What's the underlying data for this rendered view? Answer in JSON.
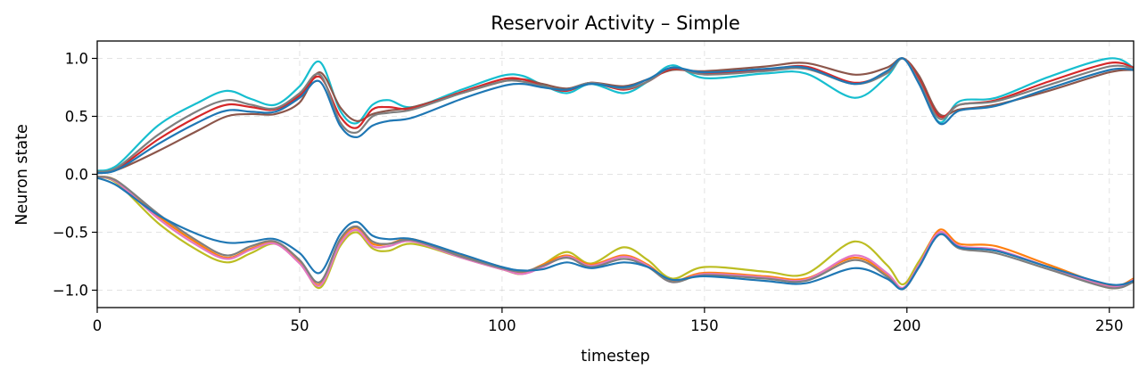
{
  "chart_data": {
    "type": "line",
    "title": "Reservoir Activity – Simple",
    "xlabel": "timestep",
    "ylabel": "Neuron state",
    "xlim": [
      0,
      256
    ],
    "ylim": [
      -1.15,
      1.15
    ],
    "xticks": [
      0,
      50,
      100,
      150,
      200,
      250
    ],
    "yticks": [
      1.0,
      0.5,
      0.0,
      -0.5,
      -1.0
    ],
    "xtick_labels": [
      "0",
      "50",
      "100",
      "150",
      "200",
      "250"
    ],
    "ytick_labels": [
      "1.0",
      "0.5",
      "0.0",
      "−0.5",
      "−1.0"
    ],
    "grid": true,
    "legend": "none",
    "series": [
      {
        "color": "#17becf",
        "x": [
          0,
          5,
          15,
          25,
          32,
          38,
          44,
          50,
          55,
          60,
          64,
          68,
          72,
          78,
          90,
          100,
          105,
          110,
          116,
          122,
          130,
          136,
          142,
          150,
          165,
          175,
          187,
          195,
          199,
          203,
          208,
          213,
          222,
          235,
          250,
          256
        ],
        "values": [
          0.03,
          0.08,
          0.42,
          0.62,
          0.72,
          0.65,
          0.6,
          0.76,
          0.97,
          0.55,
          0.44,
          0.6,
          0.64,
          0.58,
          0.73,
          0.85,
          0.85,
          0.77,
          0.7,
          0.78,
          0.7,
          0.8,
          0.94,
          0.83,
          0.87,
          0.87,
          0.66,
          0.84,
          1.0,
          0.8,
          0.45,
          0.63,
          0.66,
          0.84,
          1.0,
          0.92
        ]
      },
      {
        "color": "#8c564b",
        "x": [
          0,
          5,
          15,
          25,
          32,
          38,
          44,
          50,
          55,
          60,
          64,
          68,
          72,
          78,
          90,
          100,
          105,
          110,
          116,
          122,
          130,
          136,
          142,
          150,
          165,
          175,
          187,
          195,
          199,
          203,
          208,
          213,
          222,
          235,
          250,
          256
        ],
        "values": [
          0.02,
          0.04,
          0.2,
          0.38,
          0.5,
          0.52,
          0.52,
          0.62,
          0.88,
          0.58,
          0.46,
          0.52,
          0.55,
          0.58,
          0.7,
          0.8,
          0.82,
          0.78,
          0.74,
          0.79,
          0.76,
          0.82,
          0.9,
          0.89,
          0.93,
          0.96,
          0.86,
          0.92,
          1.0,
          0.85,
          0.52,
          0.56,
          0.6,
          0.72,
          0.88,
          0.9
        ]
      },
      {
        "color": "#d62728",
        "x": [
          0,
          5,
          15,
          25,
          32,
          38,
          44,
          50,
          55,
          60,
          64,
          68,
          72,
          78,
          90,
          100,
          105,
          110,
          116,
          122,
          130,
          136,
          142,
          150,
          165,
          175,
          187,
          195,
          199,
          203,
          208,
          213,
          222,
          235,
          250,
          256
        ],
        "values": [
          0.02,
          0.05,
          0.3,
          0.5,
          0.6,
          0.58,
          0.56,
          0.68,
          0.84,
          0.5,
          0.4,
          0.56,
          0.58,
          0.57,
          0.71,
          0.82,
          0.82,
          0.76,
          0.72,
          0.79,
          0.73,
          0.8,
          0.91,
          0.87,
          0.9,
          0.93,
          0.79,
          0.88,
          1.0,
          0.82,
          0.5,
          0.6,
          0.64,
          0.8,
          0.96,
          0.92
        ]
      },
      {
        "color": "#7f7f7f",
        "x": [
          0,
          5,
          15,
          25,
          32,
          38,
          44,
          50,
          55,
          60,
          64,
          68,
          72,
          78,
          90,
          100,
          105,
          110,
          116,
          122,
          130,
          136,
          142,
          150,
          165,
          175,
          187,
          195,
          199,
          203,
          208,
          213,
          222,
          235,
          250,
          256
        ],
        "values": [
          0.02,
          0.06,
          0.34,
          0.55,
          0.64,
          0.6,
          0.57,
          0.7,
          0.86,
          0.45,
          0.36,
          0.5,
          0.53,
          0.56,
          0.7,
          0.8,
          0.8,
          0.76,
          0.73,
          0.79,
          0.74,
          0.8,
          0.92,
          0.86,
          0.89,
          0.91,
          0.78,
          0.87,
          1.0,
          0.8,
          0.48,
          0.6,
          0.63,
          0.77,
          0.93,
          0.91
        ]
      },
      {
        "color": "#1f77b4",
        "x": [
          0,
          5,
          15,
          25,
          32,
          38,
          44,
          50,
          55,
          60,
          64,
          68,
          72,
          78,
          90,
          100,
          105,
          110,
          116,
          122,
          130,
          136,
          142,
          150,
          165,
          175,
          187,
          195,
          199,
          203,
          208,
          213,
          222,
          235,
          250,
          256
        ],
        "values": [
          0.01,
          0.04,
          0.26,
          0.45,
          0.55,
          0.54,
          0.54,
          0.66,
          0.8,
          0.42,
          0.32,
          0.42,
          0.46,
          0.49,
          0.65,
          0.76,
          0.78,
          0.75,
          0.73,
          0.78,
          0.75,
          0.82,
          0.92,
          0.88,
          0.91,
          0.92,
          0.78,
          0.89,
          1.0,
          0.78,
          0.44,
          0.55,
          0.59,
          0.74,
          0.9,
          0.9
        ]
      },
      {
        "color": "#bcbd22",
        "x": [
          0,
          5,
          15,
          25,
          32,
          38,
          44,
          50,
          55,
          60,
          64,
          68,
          72,
          78,
          90,
          100,
          105,
          110,
          116,
          122,
          130,
          136,
          142,
          150,
          165,
          175,
          187,
          195,
          199,
          203,
          208,
          213,
          222,
          235,
          250,
          256
        ],
        "values": [
          -0.02,
          -0.08,
          -0.42,
          -0.66,
          -0.76,
          -0.68,
          -0.6,
          -0.75,
          -0.98,
          -0.62,
          -0.5,
          -0.64,
          -0.66,
          -0.6,
          -0.72,
          -0.82,
          -0.86,
          -0.78,
          -0.67,
          -0.77,
          -0.63,
          -0.74,
          -0.9,
          -0.8,
          -0.84,
          -0.86,
          -0.58,
          -0.78,
          -0.95,
          -0.75,
          -0.5,
          -0.62,
          -0.66,
          -0.8,
          -0.98,
          -0.92
        ]
      },
      {
        "color": "#ff7f0e",
        "x": [
          0,
          5,
          15,
          25,
          32,
          38,
          44,
          50,
          55,
          60,
          64,
          68,
          72,
          78,
          90,
          100,
          105,
          110,
          116,
          122,
          130,
          136,
          142,
          150,
          165,
          175,
          187,
          195,
          199,
          203,
          208,
          213,
          222,
          235,
          250,
          256
        ],
        "values": [
          -0.02,
          -0.06,
          -0.36,
          -0.6,
          -0.72,
          -0.64,
          -0.59,
          -0.76,
          -0.95,
          -0.58,
          -0.46,
          -0.6,
          -0.6,
          -0.56,
          -0.7,
          -0.8,
          -0.85,
          -0.78,
          -0.7,
          -0.78,
          -0.7,
          -0.78,
          -0.92,
          -0.85,
          -0.88,
          -0.9,
          -0.72,
          -0.86,
          -0.98,
          -0.78,
          -0.48,
          -0.6,
          -0.62,
          -0.78,
          -0.96,
          -0.9
        ]
      },
      {
        "color": "#e377c2",
        "x": [
          0,
          5,
          15,
          25,
          32,
          38,
          44,
          50,
          55,
          60,
          64,
          68,
          72,
          78,
          90,
          100,
          105,
          110,
          116,
          122,
          130,
          136,
          142,
          150,
          165,
          175,
          187,
          195,
          199,
          203,
          208,
          213,
          222,
          235,
          250,
          256
        ],
        "values": [
          -0.02,
          -0.07,
          -0.38,
          -0.62,
          -0.73,
          -0.65,
          -0.6,
          -0.77,
          -0.96,
          -0.6,
          -0.48,
          -0.62,
          -0.62,
          -0.58,
          -0.72,
          -0.82,
          -0.86,
          -0.8,
          -0.71,
          -0.79,
          -0.71,
          -0.79,
          -0.93,
          -0.86,
          -0.89,
          -0.91,
          -0.7,
          -0.85,
          -0.98,
          -0.78,
          -0.5,
          -0.62,
          -0.65,
          -0.8,
          -0.97,
          -0.91
        ]
      },
      {
        "color": "#7f7f7f",
        "x": [
          0,
          5,
          15,
          25,
          32,
          38,
          44,
          50,
          55,
          60,
          64,
          68,
          72,
          78,
          90,
          100,
          105,
          110,
          116,
          122,
          130,
          136,
          142,
          150,
          165,
          175,
          187,
          195,
          199,
          203,
          208,
          213,
          222,
          235,
          250,
          256
        ],
        "values": [
          -0.02,
          -0.06,
          -0.34,
          -0.58,
          -0.7,
          -0.62,
          -0.58,
          -0.74,
          -0.93,
          -0.56,
          -0.45,
          -0.58,
          -0.6,
          -0.57,
          -0.71,
          -0.81,
          -0.84,
          -0.79,
          -0.72,
          -0.8,
          -0.73,
          -0.8,
          -0.93,
          -0.87,
          -0.9,
          -0.92,
          -0.74,
          -0.88,
          -0.99,
          -0.8,
          -0.52,
          -0.64,
          -0.68,
          -0.82,
          -0.98,
          -0.93
        ]
      },
      {
        "color": "#1f77b4",
        "x": [
          0,
          5,
          15,
          25,
          32,
          38,
          44,
          50,
          55,
          60,
          64,
          68,
          72,
          78,
          90,
          100,
          105,
          110,
          116,
          122,
          130,
          136,
          142,
          150,
          165,
          175,
          187,
          195,
          199,
          203,
          208,
          213,
          222,
          235,
          250,
          256
        ],
        "values": [
          -0.03,
          -0.1,
          -0.35,
          -0.52,
          -0.59,
          -0.58,
          -0.56,
          -0.68,
          -0.85,
          -0.52,
          -0.41,
          -0.53,
          -0.56,
          -0.56,
          -0.69,
          -0.8,
          -0.83,
          -0.82,
          -0.76,
          -0.81,
          -0.76,
          -0.8,
          -0.91,
          -0.88,
          -0.92,
          -0.94,
          -0.81,
          -0.9,
          -0.99,
          -0.8,
          -0.52,
          -0.63,
          -0.66,
          -0.8,
          -0.95,
          -0.92
        ]
      }
    ]
  }
}
